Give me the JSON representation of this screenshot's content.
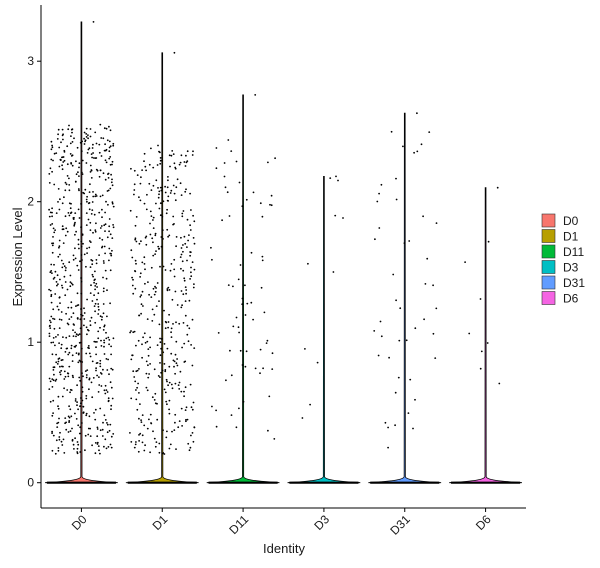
{
  "chart_data": {
    "type": "violin-jitter",
    "title": "",
    "xlabel": "Identity",
    "ylabel": "Expression Level",
    "categories": [
      "D0",
      "D1",
      "D11",
      "D3",
      "D31",
      "D6"
    ],
    "ylim": [
      -0.18,
      3.4
    ],
    "yticks": [
      0,
      1,
      2,
      3
    ],
    "ytick_labels": [
      "0",
      "1",
      "2",
      "3"
    ],
    "grid": false,
    "legend_position": "right",
    "series": [
      {
        "name": "D0",
        "color": "#F8766D",
        "max": 3.28,
        "nonzero": 720,
        "range": [
          0.2,
          2.55
        ]
      },
      {
        "name": "D1",
        "color": "#B79F00",
        "max": 3.06,
        "nonzero": 420,
        "range": [
          0.2,
          2.4
        ]
      },
      {
        "name": "D11",
        "color": "#00BA38",
        "max": 2.76,
        "nonzero": 70,
        "range": [
          0.3,
          2.45
        ]
      },
      {
        "name": "D3",
        "color": "#00BFC4",
        "max": 2.18,
        "nonzero": 10,
        "range": [
          0.35,
          2.18
        ]
      },
      {
        "name": "D31",
        "color": "#619CFF",
        "max": 2.63,
        "nonzero": 45,
        "range": [
          0.25,
          2.6
        ]
      },
      {
        "name": "D6",
        "color": "#F564E3",
        "max": 2.1,
        "nonzero": 8,
        "range": [
          0.35,
          2.1
        ]
      }
    ]
  }
}
